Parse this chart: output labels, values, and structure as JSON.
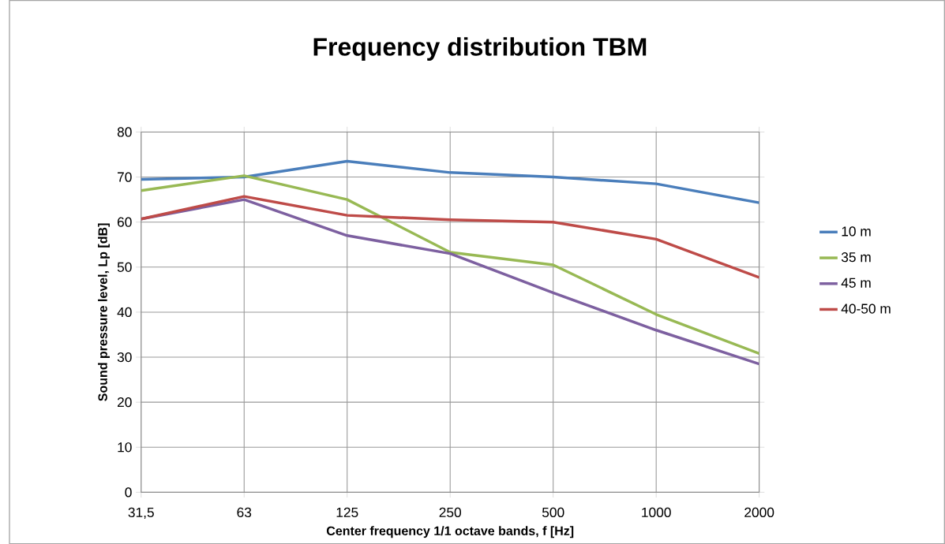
{
  "chart_data": {
    "type": "line",
    "title": "Frequency distribution  TBM",
    "xlabel": "Center frequency 1/1 octave bands,  f [Hz]",
    "ylabel": "Sound pressure level, Lp [dB]",
    "categories": [
      "31,5",
      "63",
      "125",
      "250",
      "500",
      "1000",
      "2000"
    ],
    "series": [
      {
        "name": "10 m",
        "color": "#4a7ebb",
        "values": [
          69.5,
          70,
          73.5,
          71,
          70,
          68.5,
          64.3
        ]
      },
      {
        "name": "35 m",
        "color": "#98b954",
        "values": [
          67,
          70.3,
          65,
          53.3,
          50.5,
          39.5,
          30.8
        ]
      },
      {
        "name": "45 m",
        "color": "#7d60a0",
        "values": [
          60.7,
          65,
          57,
          53,
          44.3,
          36,
          28.5
        ]
      },
      {
        "name": "40-50 m",
        "color": "#be4b48",
        "values": [
          60.7,
          65.7,
          61.5,
          60.5,
          60,
          56.2,
          47.7
        ]
      }
    ],
    "ylim": [
      0,
      80
    ],
    "yticks": [
      0,
      10,
      20,
      30,
      40,
      50,
      60,
      70,
      80
    ],
    "grid": true,
    "legend": "right",
    "marker": "none",
    "line_style": "solid"
  }
}
